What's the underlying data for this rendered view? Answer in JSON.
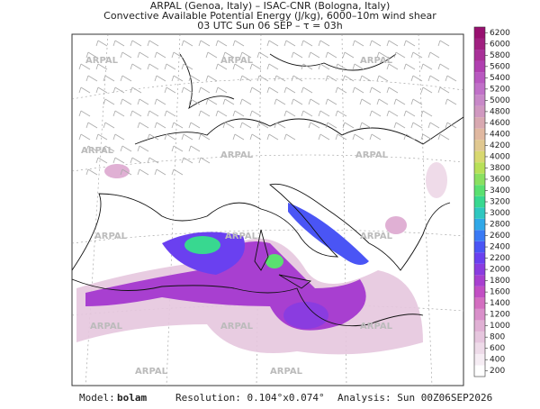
{
  "header": {
    "lines": [
      "ARPAL (Genoa, Italy)  –  ISAC-CNR (Bologna, Italy)",
      "Convective Available Potential Energy (J/kg), 6000–10m wind shear",
      "03 UTC Sun 06 SEP  –  τ = 03h"
    ]
  },
  "watermark": "ARPAL",
  "colorbar": {
    "ticks": [
      200,
      400,
      600,
      800,
      1000,
      1200,
      1400,
      1600,
      1800,
      2000,
      2200,
      2400,
      2600,
      2800,
      3000,
      3200,
      3400,
      3600,
      3800,
      4000,
      4200,
      4400,
      4600,
      4800,
      5000,
      5200,
      5400,
      5600,
      5800,
      6000,
      6200
    ],
    "colors": [
      "#ffffff",
      "#f6edf4",
      "#eedbe9",
      "#e6c6de",
      "#e0b0d4",
      "#d98fca",
      "#d36ec0",
      "#c24ec4",
      "#a83fd0",
      "#8a3ce0",
      "#6a40f0",
      "#4a55f5",
      "#3a7af5",
      "#30a8e8",
      "#2fc7c0",
      "#38d890",
      "#5ae070",
      "#8ae060",
      "#b8e058",
      "#d8d870",
      "#e0c890",
      "#e0b8a0",
      "#d8a8b0",
      "#d098c0",
      "#c888c8",
      "#c070c8",
      "#b858c0",
      "#b040b0",
      "#a83098",
      "#a02080",
      "#981070"
    ]
  },
  "footer": {
    "model_label": "Model:",
    "model": "bolam",
    "resolution": "Resolution: 0.104°x0.074°",
    "analysis": "Analysis: Sun 00Z06SEP2026"
  }
}
